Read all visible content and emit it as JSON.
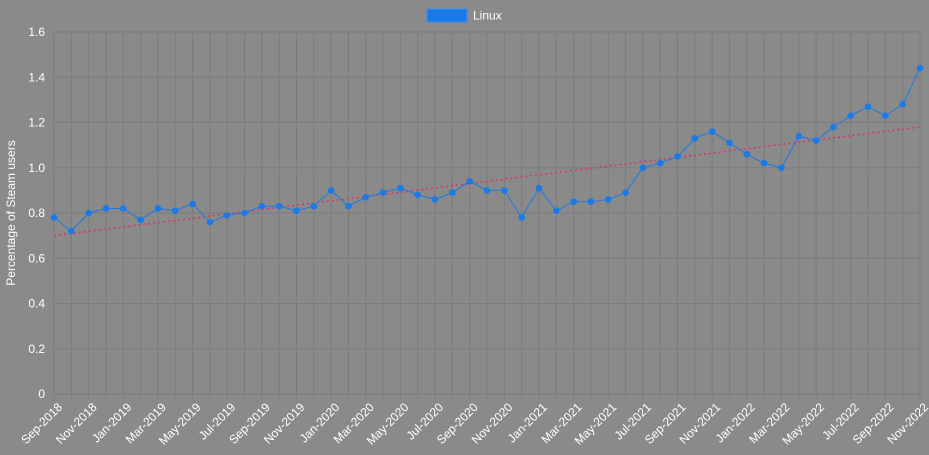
{
  "chart_data": {
    "type": "line",
    "ylabel": "Percentage of Steam users",
    "ylim": [
      0,
      1.6
    ],
    "yticks": [
      "0",
      "0.2",
      "0.4",
      "0.6",
      "0.8",
      "1.0",
      "1.2",
      "1.4",
      "1.6"
    ],
    "grid": true,
    "legend_position": "top-center",
    "x": [
      "Sep-2018",
      "Oct-2018",
      "Nov-2018",
      "Dec-2018",
      "Jan-2019",
      "Feb-2019",
      "Mar-2019",
      "Apr-2019",
      "May-2019",
      "Jun-2019",
      "Jul-2019",
      "Aug-2019",
      "Sep-2019",
      "Oct-2019",
      "Nov-2019",
      "Dec-2019",
      "Jan-2020",
      "Feb-2020",
      "Mar-2020",
      "Apr-2020",
      "May-2020",
      "Jun-2020",
      "Jul-2020",
      "Aug-2020",
      "Sep-2020",
      "Oct-2020",
      "Nov-2020",
      "Dec-2020",
      "Jan-2021",
      "Feb-2021",
      "Mar-2021",
      "Apr-2021",
      "May-2021",
      "Jun-2021",
      "Jul-2021",
      "Aug-2021",
      "Sep-2021",
      "Oct-2021",
      "Nov-2021",
      "Dec-2021",
      "Jan-2022",
      "Feb-2022",
      "Mar-2022",
      "Apr-2022",
      "May-2022",
      "Jun-2022",
      "Jul-2022",
      "Aug-2022",
      "Sep-2022",
      "Oct-2022",
      "Nov-2022"
    ],
    "xtick_labels": [
      "Sep-2018",
      "Nov-2018",
      "Jan-2019",
      "Mar-2019",
      "May-2019",
      "Jul-2019",
      "Sep-2019",
      "Nov-2019",
      "Jan-2020",
      "Mar-2020",
      "May-2020",
      "Jul-2020",
      "Sep-2020",
      "Nov-2020",
      "Jan-2021",
      "Mar-2021",
      "May-2021",
      "Jul-2021",
      "Sep-2021",
      "Nov-2021",
      "Jan-2022",
      "Mar-2022",
      "May-2022",
      "Jul-2022",
      "Sep-2022",
      "Nov-2022"
    ],
    "series": [
      {
        "name": "Linux",
        "color": "#1a7be8",
        "values": [
          0.78,
          0.72,
          0.8,
          0.82,
          0.82,
          0.77,
          0.82,
          0.81,
          0.84,
          0.76,
          0.79,
          0.8,
          0.83,
          0.83,
          0.81,
          0.83,
          0.9,
          0.83,
          0.87,
          0.89,
          0.91,
          0.88,
          0.86,
          0.89,
          0.94,
          0.9,
          0.9,
          0.78,
          0.91,
          0.81,
          0.85,
          0.85,
          0.86,
          0.89,
          1.0,
          1.02,
          1.05,
          1.13,
          1.16,
          1.11,
          1.06,
          1.02,
          1.0,
          1.14,
          1.12,
          1.18,
          1.23,
          1.27,
          1.23,
          1.28,
          1.44
        ]
      }
    ],
    "trendline": {
      "color": "#e0306a",
      "style": "dotted",
      "start": 0.7,
      "end": 1.18
    },
    "colors": {
      "background": "#8a8a8a",
      "grid": "#7c7c7c",
      "text": "#ffffff",
      "line": "#1a7be8",
      "trend": "#e0306a"
    }
  }
}
